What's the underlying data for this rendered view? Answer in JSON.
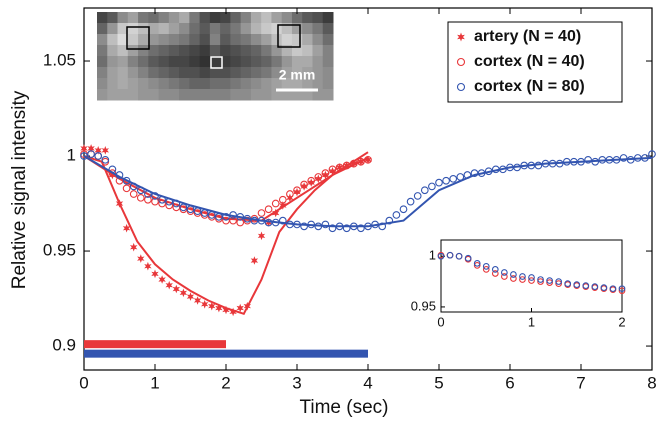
{
  "chart_data": {
    "type": "scatter",
    "xlabel": "Time (sec)",
    "ylabel": "Relative signal intensity",
    "xlim": [
      0,
      8
    ],
    "ylim": [
      0.8874,
      1.0779
    ],
    "xticks": [
      0,
      1,
      2,
      3,
      4,
      5,
      6,
      7,
      8
    ],
    "yticks": [
      0.9,
      0.95,
      1,
      1.05
    ],
    "grid": false,
    "legend": "upper right",
    "series": [
      {
        "name": "artery (N = 40)",
        "color": "#e8373a",
        "marker": "star",
        "x": [
          0,
          0.1,
          0.2,
          0.3,
          0.4,
          0.5,
          0.6,
          0.7,
          0.8,
          0.9,
          1,
          1.1,
          1.2,
          1.3,
          1.4,
          1.5,
          1.6,
          1.7,
          1.8,
          1.9,
          2,
          2.1,
          2.2,
          2.3,
          2.4,
          2.5,
          2.6,
          2.7,
          2.8,
          2.9,
          3,
          3.1,
          3.2,
          3.3,
          3.4,
          3.5,
          3.6,
          3.7,
          3.8,
          3.9,
          4
        ],
        "values": [
          1.004,
          1.004,
          1.003,
          1.003,
          0.99,
          0.975,
          0.962,
          0.952,
          0.946,
          0.942,
          0.938,
          0.935,
          0.932,
          0.93,
          0.928,
          0.926,
          0.924,
          0.922,
          0.921,
          0.92,
          0.919,
          0.918,
          0.92,
          0.921,
          0.945,
          0.958,
          0.965,
          0.97,
          0.974,
          0.978,
          0.981,
          0.984,
          0.986,
          0.988,
          0.99,
          0.992,
          0.994,
          0.995,
          0.996,
          0.997,
          0.998
        ],
        "fit_x": [
          0,
          0.25,
          0.5,
          0.75,
          1,
          1.25,
          1.5,
          1.75,
          2,
          2.25,
          2.5,
          2.75,
          3,
          3.25,
          3.5,
          3.75,
          4
        ],
        "fit_values": [
          1.0,
          0.997,
          0.975,
          0.955,
          0.943,
          0.935,
          0.929,
          0.924,
          0.92,
          0.917,
          0.935,
          0.96,
          0.972,
          0.982,
          0.99,
          0.996,
          1.002
        ]
      },
      {
        "name": "cortex (N = 40)",
        "color": "#e8373a",
        "marker": "circle",
        "x": [
          0,
          0.1,
          0.2,
          0.3,
          0.4,
          0.5,
          0.6,
          0.7,
          0.8,
          0.9,
          1,
          1.1,
          1.2,
          1.3,
          1.4,
          1.5,
          1.6,
          1.7,
          1.8,
          1.9,
          2,
          2.1,
          2.2,
          2.3,
          2.4,
          2.5,
          2.6,
          2.7,
          2.8,
          2.9,
          3,
          3.1,
          3.2,
          3.3,
          3.4,
          3.5,
          3.6,
          3.7,
          3.8,
          3.9,
          4
        ],
        "values": [
          1.001,
          1.001,
          1.0,
          0.997,
          0.991,
          0.987,
          0.983,
          0.98,
          0.978,
          0.977,
          0.976,
          0.975,
          0.974,
          0.973,
          0.972,
          0.971,
          0.97,
          0.969,
          0.968,
          0.967,
          0.966,
          0.966,
          0.965,
          0.966,
          0.967,
          0.97,
          0.972,
          0.975,
          0.977,
          0.98,
          0.982,
          0.985,
          0.987,
          0.989,
          0.991,
          0.993,
          0.994,
          0.995,
          0.996,
          0.997,
          0.998
        ],
        "fit_x": [
          0,
          0.5,
          1,
          1.5,
          2,
          2.5,
          3,
          3.5,
          4
        ],
        "fit_values": [
          1.0,
          0.988,
          0.978,
          0.972,
          0.967,
          0.966,
          0.978,
          0.99,
          0.999
        ]
      },
      {
        "name": "cortex (N = 80)",
        "color": "#3355b0",
        "marker": "circle",
        "x": [
          0,
          0.1,
          0.2,
          0.3,
          0.4,
          0.5,
          0.6,
          0.7,
          0.8,
          0.9,
          1,
          1.1,
          1.2,
          1.3,
          1.4,
          1.5,
          1.6,
          1.7,
          1.8,
          1.9,
          2,
          2.1,
          2.2,
          2.3,
          2.4,
          2.5,
          2.6,
          2.7,
          2.8,
          2.9,
          3,
          3.1,
          3.2,
          3.3,
          3.4,
          3.5,
          3.6,
          3.7,
          3.8,
          3.9,
          4,
          4.1,
          4.2,
          4.3,
          4.4,
          4.5,
          4.6,
          4.7,
          4.8,
          4.9,
          5,
          5.1,
          5.2,
          5.3,
          5.4,
          5.5,
          5.6,
          5.7,
          5.8,
          5.9,
          6,
          6.1,
          6.2,
          6.3,
          6.4,
          6.5,
          6.6,
          6.7,
          6.8,
          6.9,
          7,
          7.1,
          7.2,
          7.3,
          7.4,
          7.5,
          7.6,
          7.7,
          7.8,
          7.9,
          8
        ],
        "values": [
          1.0,
          1.001,
          1.0,
          0.998,
          0.993,
          0.99,
          0.987,
          0.984,
          0.982,
          0.98,
          0.979,
          0.977,
          0.976,
          0.975,
          0.973,
          0.972,
          0.971,
          0.97,
          0.969,
          0.968,
          0.968,
          0.969,
          0.968,
          0.967,
          0.966,
          0.966,
          0.965,
          0.965,
          0.966,
          0.964,
          0.964,
          0.963,
          0.964,
          0.963,
          0.964,
          0.962,
          0.963,
          0.962,
          0.963,
          0.962,
          0.963,
          0.964,
          0.963,
          0.966,
          0.969,
          0.972,
          0.976,
          0.979,
          0.982,
          0.984,
          0.986,
          0.987,
          0.988,
          0.989,
          0.99,
          0.991,
          0.991,
          0.992,
          0.993,
          0.993,
          0.994,
          0.994,
          0.995,
          0.995,
          0.995,
          0.996,
          0.996,
          0.996,
          0.997,
          0.997,
          0.997,
          0.998,
          0.997,
          0.998,
          0.998,
          0.998,
          0.999,
          0.998,
          0.999,
          0.999,
          1.001
        ],
        "fit_x": [
          0,
          0.5,
          1,
          1.5,
          2,
          2.5,
          3,
          3.5,
          4,
          4.5,
          5,
          5.5,
          6,
          6.5,
          7,
          7.5,
          8
        ],
        "fit_values": [
          1.0,
          0.989,
          0.98,
          0.974,
          0.969,
          0.966,
          0.964,
          0.963,
          0.963,
          0.966,
          0.982,
          0.99,
          0.994,
          0.996,
          0.997,
          0.998,
          0.999
        ]
      }
    ],
    "bars": [
      {
        "color": "#e8373a",
        "start": 0,
        "end": 2,
        "y": 0.901
      },
      {
        "color": "#3355b0",
        "start": 0,
        "end": 4,
        "y": 0.896
      }
    ],
    "inset": {
      "xlim": [
        0,
        2
      ],
      "ylim": [
        0.945,
        1.016
      ],
      "xticks": [
        0,
        1,
        2
      ],
      "yticks": [
        0.95,
        1
      ]
    },
    "image": {
      "scale_label": "2 mm"
    }
  }
}
